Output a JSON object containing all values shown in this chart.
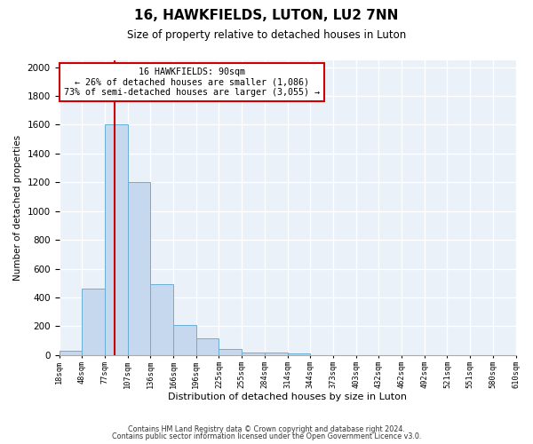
{
  "title": "16, HAWKFIELDS, LUTON, LU2 7NN",
  "subtitle": "Size of property relative to detached houses in Luton",
  "xlabel": "Distribution of detached houses by size in Luton",
  "ylabel": "Number of detached properties",
  "bin_labels": [
    "18sqm",
    "48sqm",
    "77sqm",
    "107sqm",
    "136sqm",
    "166sqm",
    "196sqm",
    "225sqm",
    "255sqm",
    "284sqm",
    "314sqm",
    "344sqm",
    "373sqm",
    "403sqm",
    "432sqm",
    "462sqm",
    "492sqm",
    "521sqm",
    "551sqm",
    "580sqm",
    "610sqm"
  ],
  "bar_values": [
    30,
    460,
    1600,
    1200,
    490,
    210,
    115,
    40,
    20,
    15,
    10,
    0,
    0,
    0,
    0,
    0,
    0,
    0,
    0,
    0
  ],
  "bar_color": "#c5d8ed",
  "bar_edge_color": "#6aaed6",
  "red_line_color": "#cc0000",
  "annotation_text": "16 HAWKFIELDS: 90sqm\n← 26% of detached houses are smaller (1,086)\n73% of semi-detached houses are larger (3,055) →",
  "annotation_box_color": "#ffffff",
  "annotation_box_edge_color": "#cc0000",
  "ylim": [
    0,
    2050
  ],
  "yticks": [
    0,
    200,
    400,
    600,
    800,
    1000,
    1200,
    1400,
    1600,
    1800,
    2000
  ],
  "footer_line1": "Contains HM Land Registry data © Crown copyright and database right 2024.",
  "footer_line2": "Contains public sector information licensed under the Open Government Licence v3.0.",
  "background_color": "#ffffff",
  "plot_bg_color": "#eaf1f8",
  "grid_color": "#ffffff"
}
